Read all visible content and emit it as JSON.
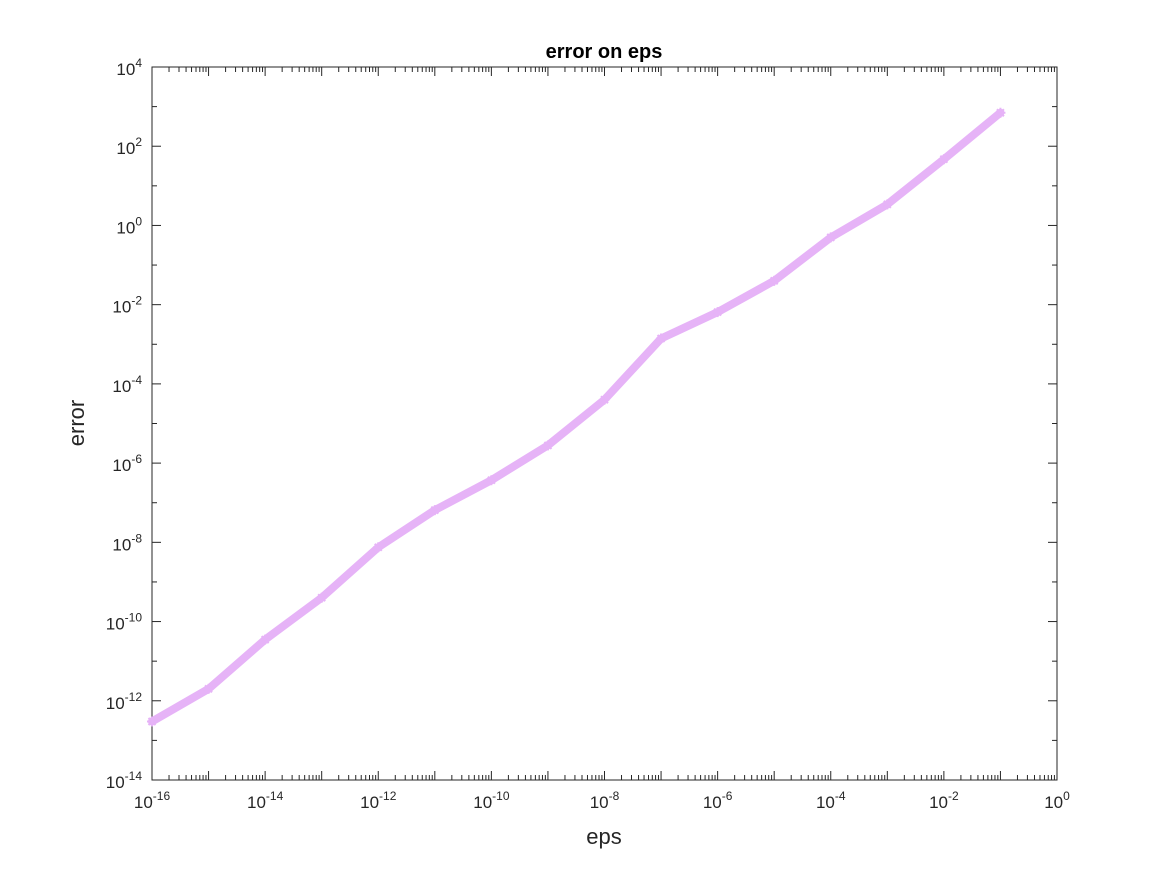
{
  "chart_data": {
    "type": "line",
    "title": "error on eps",
    "xlabel": "eps",
    "ylabel": "error",
    "xscale": "log",
    "yscale": "log",
    "xlim": [
      1e-16,
      1
    ],
    "ylim": [
      1e-14,
      10000
    ],
    "x_tick_labels": [
      {
        "base": "10",
        "exp": "-16"
      },
      {
        "base": "10",
        "exp": "-14"
      },
      {
        "base": "10",
        "exp": "-12"
      },
      {
        "base": "10",
        "exp": "-10"
      },
      {
        "base": "10",
        "exp": "-8"
      },
      {
        "base": "10",
        "exp": "-6"
      },
      {
        "base": "10",
        "exp": "-4"
      },
      {
        "base": "10",
        "exp": "-2"
      },
      {
        "base": "10",
        "exp": "0"
      }
    ],
    "y_tick_labels": [
      {
        "base": "10",
        "exp": "-14"
      },
      {
        "base": "10",
        "exp": "-12"
      },
      {
        "base": "10",
        "exp": "-10"
      },
      {
        "base": "10",
        "exp": "-8"
      },
      {
        "base": "10",
        "exp": "-6"
      },
      {
        "base": "10",
        "exp": "-4"
      },
      {
        "base": "10",
        "exp": "-2"
      },
      {
        "base": "10",
        "exp": "0"
      },
      {
        "base": "10",
        "exp": "2"
      },
      {
        "base": "10",
        "exp": "4"
      }
    ],
    "grid": false,
    "series": [
      {
        "color": "#e6b3f7",
        "marker": "asterisk",
        "x": [
          1e-16,
          1e-15,
          1e-14,
          1e-13,
          1e-12,
          1e-11,
          1e-10,
          1e-09,
          1e-08,
          1e-07,
          1e-06,
          1e-05,
          0.0001,
          0.001,
          0.01,
          0.1
        ],
        "y": [
          3e-13,
          2e-12,
          3.5e-11,
          4e-10,
          7.5e-09,
          6.5e-08,
          3.7e-07,
          2.8e-06,
          4e-05,
          0.0014,
          0.0065,
          0.04,
          0.5,
          3.4,
          47,
          700
        ]
      }
    ]
  }
}
